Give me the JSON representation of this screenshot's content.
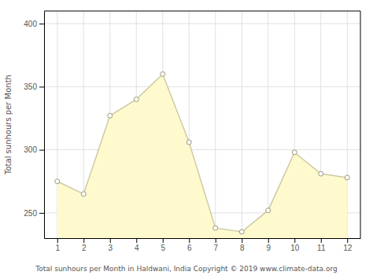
{
  "chart_data": {
    "type": "area",
    "x": [
      1,
      2,
      3,
      4,
      5,
      6,
      7,
      8,
      9,
      10,
      11,
      12
    ],
    "values": [
      275,
      265,
      327,
      340,
      360,
      306,
      238,
      235,
      252,
      298,
      281,
      278
    ],
    "color": "#FFFACD",
    "marker": "circle",
    "xlim": [
      0.5,
      12.5
    ],
    "ylim": [
      230,
      410
    ],
    "xticks": [
      1,
      2,
      3,
      4,
      5,
      6,
      7,
      8,
      9,
      10,
      11,
      12
    ],
    "yticks": [
      250,
      300,
      350,
      400
    ],
    "xlabel": "Total sunhours per Month in Haldwani, India Copyright © 2019 www.climate-data.org",
    "ylabel": "Total sunhours per Month",
    "grid": true
  }
}
